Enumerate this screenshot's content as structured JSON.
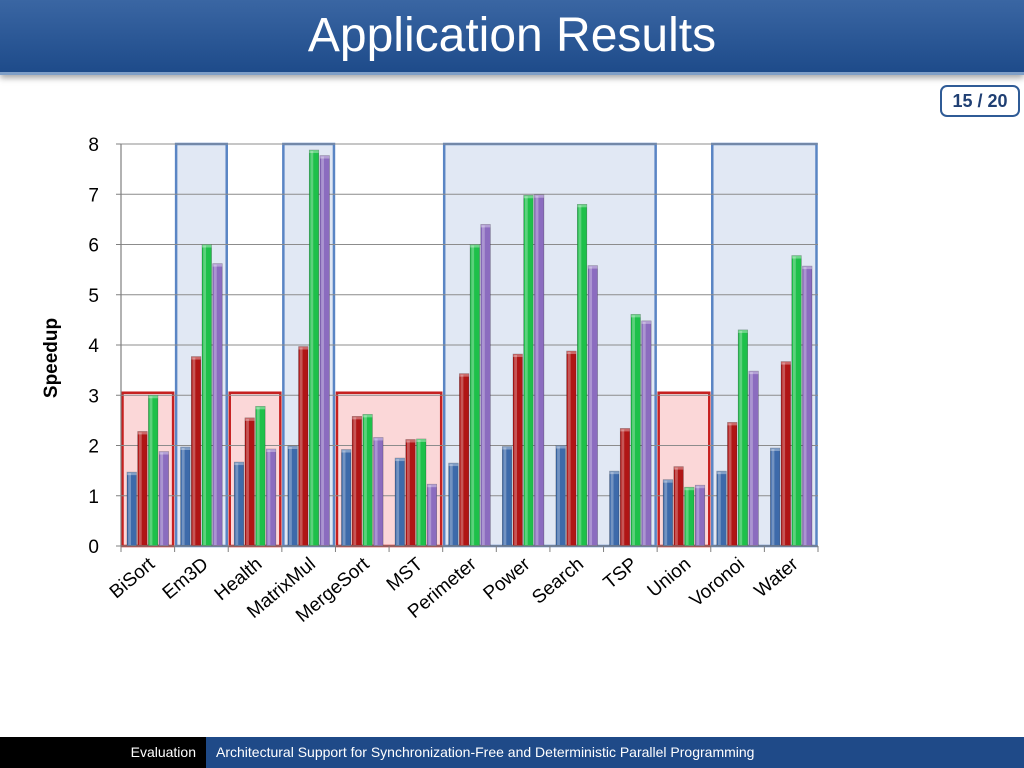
{
  "slide": {
    "title": "Application Results",
    "page": "15 / 20"
  },
  "footer": {
    "section": "Evaluation",
    "talk_title": "Architectural Support for Synchronization-Free and Deterministic Parallel Programming"
  },
  "colors": {
    "series": [
      "#3d6aaa",
      "#b01515",
      "#1ec04a",
      "#8b6cbf"
    ],
    "highlight_blue_fill": "#e1e8f4",
    "highlight_blue_border": "#5a85c4",
    "highlight_red_fill": "#fbd7d8",
    "highlight_red_border": "#c62020"
  },
  "chart_data": {
    "type": "bar",
    "ylabel": "Speedup",
    "xlabel": "",
    "ylim": [
      0,
      8
    ],
    "yticks": [
      0,
      1,
      2,
      3,
      4,
      5,
      6,
      7,
      8
    ],
    "grid": true,
    "legend": "none",
    "categories": [
      "BiSort",
      "Em3D",
      "Health",
      "MatrixMul",
      "MergeSort",
      "MST",
      "Perimeter",
      "Power",
      "Search",
      "TSP",
      "Union",
      "Voronoi",
      "Water"
    ],
    "series": [
      {
        "values": [
          1.47,
          1.97,
          1.67,
          1.99,
          1.92,
          1.75,
          1.65,
          1.98,
          2.0,
          1.49,
          1.32,
          1.49,
          1.95
        ]
      },
      {
        "values": [
          2.28,
          3.77,
          2.55,
          3.97,
          2.58,
          2.12,
          3.43,
          3.82,
          3.88,
          2.34,
          1.58,
          2.46,
          3.67
        ]
      },
      {
        "values": [
          3.0,
          6.0,
          2.78,
          7.88,
          2.62,
          2.13,
          6.0,
          6.98,
          6.8,
          4.61,
          1.17,
          4.3,
          5.78
        ]
      },
      {
        "values": [
          1.88,
          5.62,
          1.93,
          7.77,
          2.16,
          1.23,
          6.4,
          6.99,
          5.58,
          4.48,
          1.21,
          3.48,
          5.57
        ]
      }
    ],
    "highlight_groups": [
      {
        "kind": "red",
        "from": 0,
        "to": 0
      },
      {
        "kind": "blue",
        "from": 1,
        "to": 1
      },
      {
        "kind": "red",
        "from": 2,
        "to": 2
      },
      {
        "kind": "blue",
        "from": 3,
        "to": 3
      },
      {
        "kind": "red",
        "from": 4,
        "to": 5
      },
      {
        "kind": "blue",
        "from": 6,
        "to": 9
      },
      {
        "kind": "red",
        "from": 10,
        "to": 10
      },
      {
        "kind": "blue",
        "from": 11,
        "to": 12
      }
    ],
    "highlight_levels": {
      "blue": 8,
      "red": 3.05
    }
  }
}
